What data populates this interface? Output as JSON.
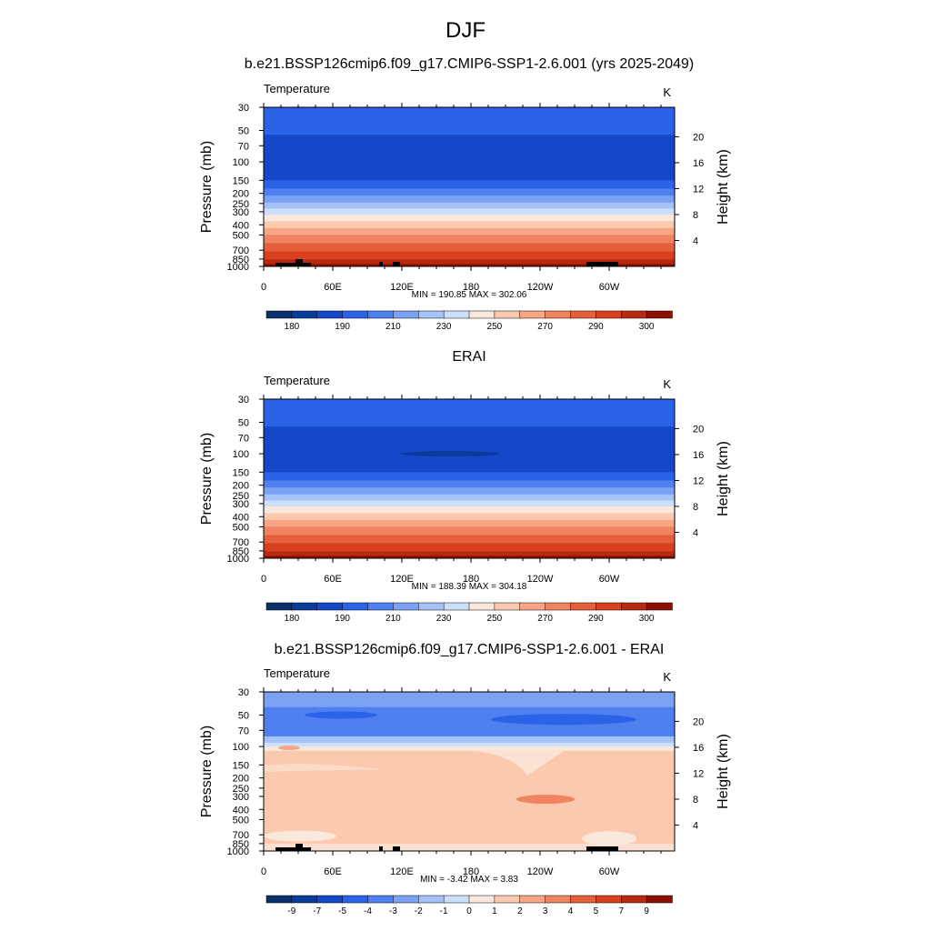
{
  "page_title": "DJF",
  "colors": {
    "scale": [
      "#08306b",
      "#0a3a9a",
      "#1448c8",
      "#2a62e8",
      "#4f80f0",
      "#7aa1f4",
      "#a6c2f8",
      "#cde0fb",
      "#fbe8dc",
      "#fbc9ae",
      "#f7a585",
      "#f08360",
      "#e65f3b",
      "#d8401e",
      "#b82a10",
      "#8b1000"
    ],
    "panel_fill_top": "#4a7cf0",
    "panel_fill_bottom": "#cc2c0c"
  },
  "panels": [
    {
      "title": "b.e21.BSSP126cmip6.f09_g17.CMIP6-SSP1-2.6.001 (yrs 2025-2049)",
      "left_label": "Temperature",
      "right_label": "K",
      "ylabel": "Pressure (mb)",
      "ylabel_right": "Height (km)",
      "stats": "MIN = 190.85  MAX = 302.06"
    },
    {
      "title": "ERAI",
      "left_label": "Temperature",
      "right_label": "K",
      "ylabel": "Pressure (mb)",
      "ylabel_right": "Height (km)",
      "stats": "MIN = 188.39  MAX = 304.18"
    },
    {
      "title": "b.e21.BSSP126cmip6.f09_g17.CMIP6-SSP1-2.6.001 - ERAI",
      "left_label": "Temperature",
      "right_label": "K",
      "ylabel": "Pressure (mb)",
      "ylabel_right": "Height (km)",
      "stats": "MIN =  -3.42  MAX =   3.83"
    }
  ],
  "chart_data": [
    {
      "type": "heatmap",
      "title": "b.e21.BSSP126cmip6.f09_g17.CMIP6-SSP1-2.6.001 (yrs 2025-2049)",
      "xlabel": "",
      "ylabel": "Pressure (mb)",
      "ylabel_right": "Height (km)",
      "x_ticks": [
        "0",
        "60E",
        "120E",
        "180",
        "120W",
        "60W"
      ],
      "y_ticks": [
        "30",
        "50",
        "70",
        "100",
        "150",
        "200",
        "250",
        "300",
        "400",
        "500",
        "700",
        "850",
        "1000"
      ],
      "y_ticks_right": [
        "20",
        "16",
        "12",
        "8",
        "4"
      ],
      "y_scale": "log",
      "y_range": [
        1000,
        30
      ],
      "colorbar_labels": [
        "180",
        "190",
        "210",
        "230",
        "250",
        "270",
        "290",
        "300"
      ],
      "min": 190.85,
      "max": 302.06
    },
    {
      "type": "heatmap",
      "title": "ERAI",
      "xlabel": "",
      "ylabel": "Pressure (mb)",
      "ylabel_right": "Height (km)",
      "x_ticks": [
        "0",
        "60E",
        "120E",
        "180",
        "120W",
        "60W"
      ],
      "y_ticks": [
        "30",
        "50",
        "70",
        "100",
        "150",
        "200",
        "250",
        "300",
        "400",
        "500",
        "700",
        "850",
        "1000"
      ],
      "y_ticks_right": [
        "20",
        "16",
        "12",
        "8",
        "4"
      ],
      "y_scale": "log",
      "y_range": [
        1000,
        30
      ],
      "colorbar_labels": [
        "180",
        "190",
        "210",
        "230",
        "250",
        "270",
        "290",
        "300"
      ],
      "min": 188.39,
      "max": 304.18
    },
    {
      "type": "heatmap",
      "title": "b.e21.BSSP126cmip6.f09_g17.CMIP6-SSP1-2.6.001 - ERAI",
      "xlabel": "",
      "ylabel": "Pressure (mb)",
      "ylabel_right": "Height (km)",
      "x_ticks": [
        "0",
        "60E",
        "120E",
        "180",
        "120W",
        "60W"
      ],
      "y_ticks": [
        "30",
        "50",
        "70",
        "100",
        "150",
        "200",
        "250",
        "300",
        "400",
        "500",
        "700",
        "850",
        "1000"
      ],
      "y_ticks_right": [
        "20",
        "16",
        "12",
        "8",
        "4"
      ],
      "y_scale": "log",
      "y_range": [
        1000,
        30
      ],
      "colorbar_labels": [
        "-9",
        "-7",
        "-5",
        "-4",
        "-3",
        "-2",
        "-1",
        "0",
        "1",
        "2",
        "3",
        "4",
        "5",
        "7",
        "9"
      ],
      "min": -3.42,
      "max": 3.83
    }
  ]
}
